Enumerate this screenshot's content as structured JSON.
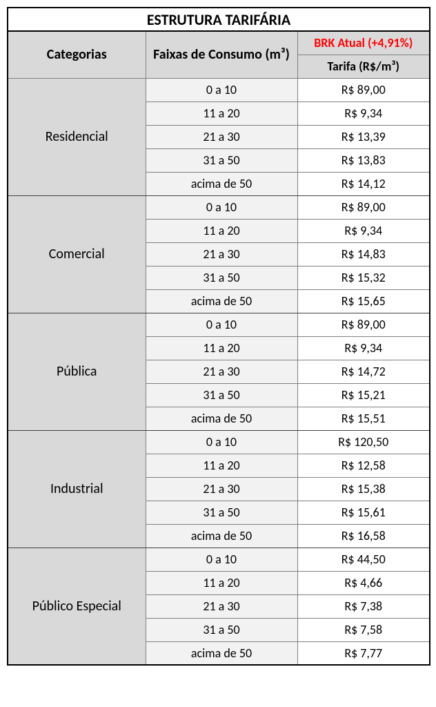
{
  "title": "ESTRUTURA TARIFÁRIA",
  "headers": {
    "categorias": "Categorias",
    "faixas": "Faixas de Consumo (m³)",
    "brk": "BRK Atual (+4,91%)",
    "tarifa": "Tarifa (R$/m³)"
  },
  "colors": {
    "header_bg": "#d9d9d9",
    "faixa_bg": "#f2f2f2",
    "brk_text": "#ff0000",
    "border": "#808080"
  },
  "categories": [
    {
      "name": "Residencial",
      "rows": [
        {
          "faixa": "0 a 10",
          "tarifa": "R$ 89,00"
        },
        {
          "faixa": "11 a 20",
          "tarifa": "R$ 9,34"
        },
        {
          "faixa": "21 a 30",
          "tarifa": "R$ 13,39"
        },
        {
          "faixa": "31 a 50",
          "tarifa": "R$ 13,83"
        },
        {
          "faixa": "acima de 50",
          "tarifa": "R$ 14,12"
        }
      ]
    },
    {
      "name": "Comercial",
      "rows": [
        {
          "faixa": "0 a 10",
          "tarifa": "R$ 89,00"
        },
        {
          "faixa": "11 a 20",
          "tarifa": "R$ 9,34"
        },
        {
          "faixa": "21 a 30",
          "tarifa": "R$ 14,83"
        },
        {
          "faixa": "31 a 50",
          "tarifa": "R$ 15,32"
        },
        {
          "faixa": "acima de 50",
          "tarifa": "R$ 15,65"
        }
      ]
    },
    {
      "name": "Pública",
      "rows": [
        {
          "faixa": "0 a 10",
          "tarifa": "R$ 89,00"
        },
        {
          "faixa": "11 a 20",
          "tarifa": "R$ 9,34"
        },
        {
          "faixa": "21 a 30",
          "tarifa": "R$ 14,72"
        },
        {
          "faixa": "31 a 50",
          "tarifa": "R$ 15,21"
        },
        {
          "faixa": "acima de 50",
          "tarifa": "R$ 15,51"
        }
      ]
    },
    {
      "name": "Industrial",
      "rows": [
        {
          "faixa": "0 a 10",
          "tarifa": "R$ 120,50"
        },
        {
          "faixa": "11 a 20",
          "tarifa": "R$ 12,58"
        },
        {
          "faixa": "21 a 30",
          "tarifa": "R$ 15,38"
        },
        {
          "faixa": "31 a 50",
          "tarifa": "R$ 15,61"
        },
        {
          "faixa": "acima de 50",
          "tarifa": "R$ 16,58"
        }
      ]
    },
    {
      "name": "Público Especial",
      "rows": [
        {
          "faixa": "0 a 10",
          "tarifa": "R$ 44,50"
        },
        {
          "faixa": "11 a 20",
          "tarifa": "R$ 4,66"
        },
        {
          "faixa": "21 a 30",
          "tarifa": "R$ 7,38"
        },
        {
          "faixa": "31 a 50",
          "tarifa": "R$ 7,58"
        },
        {
          "faixa": "acima de 50",
          "tarifa": "R$ 7,77"
        }
      ]
    }
  ]
}
